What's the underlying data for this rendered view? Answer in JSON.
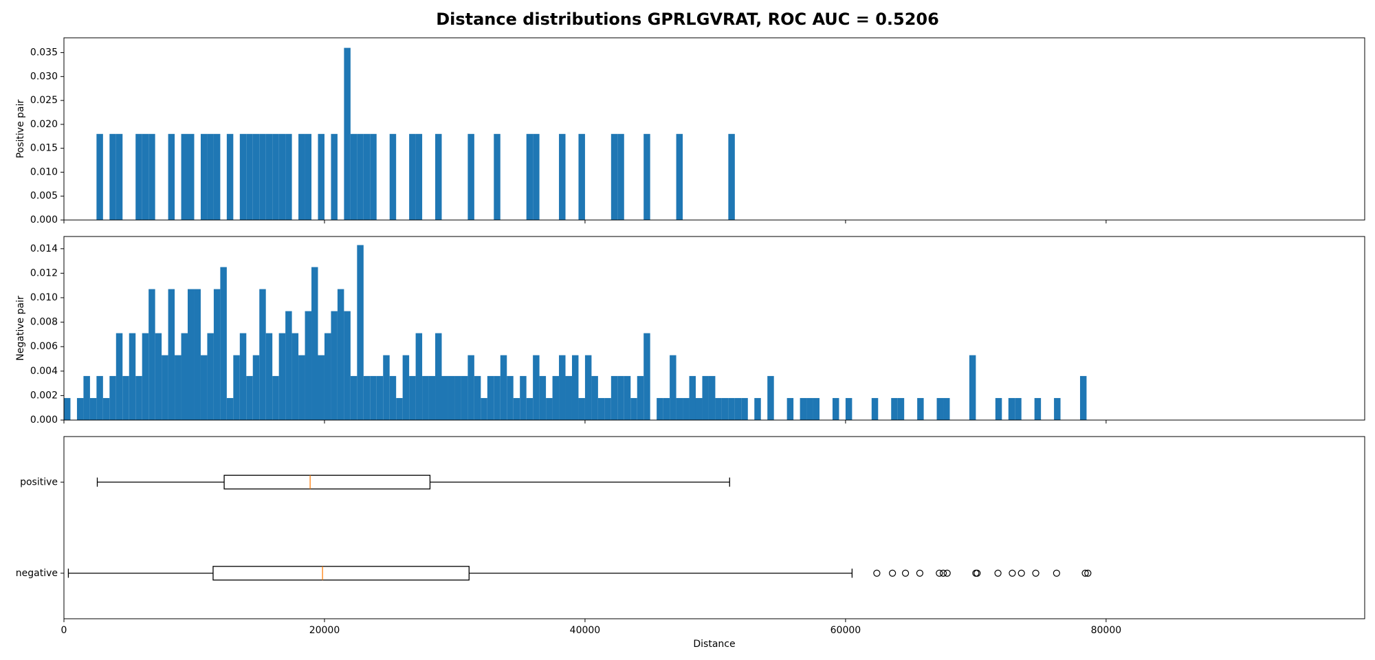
{
  "title": "Distance distributions GPRLGVRAT, ROC AUC = 0.5206",
  "chart_data": [
    {
      "type": "histogram",
      "ylabel": "Positive pair",
      "color": "#1f77b4",
      "bins": [
        0,
        500,
        1000,
        1500,
        2000,
        2500,
        3000,
        3500,
        4000,
        4500,
        5000,
        5500,
        6000,
        6500,
        7000,
        7500,
        8000,
        8500,
        9000,
        9500,
        10000,
        10500,
        11000,
        11500,
        12000,
        12500,
        13000,
        13500,
        14000,
        14500,
        15000,
        15500,
        16000,
        16500,
        17000,
        17500,
        18000,
        18500,
        19000,
        19500,
        20000,
        20500,
        21000,
        21500,
        22000,
        22500,
        23000,
        23500,
        24000,
        24500,
        25000,
        25500,
        26000,
        26500,
        27000,
        27500,
        28000,
        28500,
        29000,
        29500,
        30000,
        30500,
        31000,
        31500,
        32000,
        32500,
        33000,
        33500,
        34000,
        34500,
        35000,
        35500,
        36000,
        36500,
        37000,
        37500,
        38000,
        38500,
        39000,
        39500,
        40000,
        40500,
        41000,
        41500,
        42000,
        42500,
        43000,
        43500,
        44000,
        44500,
        45000,
        45500,
        46000,
        46500,
        47000,
        47500,
        48000,
        48500,
        49000,
        49500,
        50000,
        50500,
        51000,
        51500,
        52000
      ],
      "values": [
        0,
        0,
        0,
        0,
        0,
        0.018,
        0,
        0.018,
        0.018,
        0,
        0,
        0.018,
        0.018,
        0.018,
        0,
        0,
        0.018,
        0,
        0.018,
        0.018,
        0,
        0.018,
        0.018,
        0.018,
        0,
        0.018,
        0,
        0.018,
        0.018,
        0.018,
        0.018,
        0.018,
        0.018,
        0.018,
        0.018,
        0,
        0.018,
        0.018,
        0,
        0.018,
        0,
        0.018,
        0,
        0.036,
        0.018,
        0.018,
        0.018,
        0.018,
        0,
        0,
        0.018,
        0,
        0,
        0.018,
        0.018,
        0,
        0,
        0.018,
        0,
        0,
        0,
        0,
        0.018,
        0,
        0,
        0,
        0.018,
        0,
        0,
        0,
        0,
        0.018,
        0.018,
        0,
        0,
        0,
        0.018,
        0,
        0,
        0.018,
        0,
        0,
        0,
        0,
        0.018,
        0.018,
        0,
        0,
        0,
        0.018,
        0,
        0,
        0,
        0,
        0.018,
        0,
        0,
        0,
        0,
        0,
        0,
        0,
        0.018,
        0
      ],
      "xlim": [
        0,
        99850
      ],
      "xticks": [
        0,
        20000,
        40000,
        60000,
        80000
      ],
      "xtick_labels": false,
      "ylim": [
        0,
        0.0381
      ],
      "yticks": [
        {
          "value": 0,
          "label": "0.000"
        },
        {
          "value": 0.005,
          "label": "0.005"
        },
        {
          "value": 0.01,
          "label": "0.010"
        },
        {
          "value": 0.015,
          "label": "0.015"
        },
        {
          "value": 0.02,
          "label": "0.020"
        },
        {
          "value": 0.025,
          "label": "0.025"
        },
        {
          "value": 0.03,
          "label": "0.030"
        },
        {
          "value": 0.035,
          "label": "0.035"
        }
      ]
    },
    {
      "type": "histogram",
      "ylabel": "Negative pair",
      "color": "#1f77b4",
      "bins": [
        0,
        500,
        1000,
        1500,
        2000,
        2500,
        3000,
        3500,
        4000,
        4500,
        5000,
        5500,
        6000,
        6500,
        7000,
        7500,
        8000,
        8500,
        9000,
        9500,
        10000,
        10500,
        11000,
        11500,
        12000,
        12500,
        13000,
        13500,
        14000,
        14500,
        15000,
        15500,
        16000,
        16500,
        17000,
        17500,
        18000,
        18500,
        19000,
        19500,
        20000,
        20500,
        21000,
        21500,
        22000,
        22500,
        23000,
        23500,
        24000,
        24500,
        25000,
        25500,
        26000,
        26500,
        27000,
        27500,
        28000,
        28500,
        29000,
        29500,
        30000,
        30500,
        31000,
        31500,
        32000,
        32500,
        33000,
        33500,
        34000,
        34500,
        35000,
        35500,
        36000,
        36500,
        37000,
        37500,
        38000,
        38500,
        39000,
        39500,
        40000,
        40500,
        41000,
        41500,
        42000,
        42500,
        43000,
        43500,
        44000,
        44500,
        45000,
        45500,
        46000,
        46500,
        47000,
        47500,
        48000,
        48500,
        49000,
        49500,
        50000,
        50500,
        51000,
        51500,
        52000,
        52500,
        53000,
        53500,
        54000,
        54500,
        55000,
        55500,
        56000,
        56500,
        57000,
        57500,
        58000,
        58500,
        59000,
        59500,
        60000,
        60500,
        61000,
        61500,
        62000,
        62500,
        63000,
        63500,
        64000,
        64500,
        65000,
        65500,
        66000,
        66500,
        67000,
        67500,
        68000,
        68500,
        69000,
        69500,
        70000,
        70500,
        71000,
        71500,
        72000,
        72500,
        73000,
        73500,
        74000,
        74500,
        75000,
        75500,
        76000,
        76500,
        77000,
        77500,
        78000,
        78500,
        79000
      ],
      "values": [
        0.0018,
        0,
        0.0018,
        0.0036,
        0.0018,
        0.0036,
        0.0018,
        0.0036,
        0.0071,
        0.0036,
        0.0071,
        0.0036,
        0.0071,
        0.0107,
        0.0071,
        0.0053,
        0.0107,
        0.0053,
        0.0071,
        0.0107,
        0.0107,
        0.0053,
        0.0071,
        0.0107,
        0.0125,
        0.0018,
        0.0053,
        0.0071,
        0.0036,
        0.0053,
        0.0107,
        0.0071,
        0.0036,
        0.0071,
        0.0089,
        0.0071,
        0.0053,
        0.0089,
        0.0125,
        0.0053,
        0.0071,
        0.0089,
        0.0107,
        0.0089,
        0.0036,
        0.0143,
        0.0036,
        0.0036,
        0.0036,
        0.0053,
        0.0036,
        0.0018,
        0.0053,
        0.0036,
        0.0071,
        0.0036,
        0.0036,
        0.0071,
        0.0036,
        0.0036,
        0.0036,
        0.0036,
        0.0053,
        0.0036,
        0.0018,
        0.0036,
        0.0036,
        0.0053,
        0.0036,
        0.0018,
        0.0036,
        0.0018,
        0.0053,
        0.0036,
        0.0018,
        0.0036,
        0.0053,
        0.0036,
        0.0053,
        0.0018,
        0.0053,
        0.0036,
        0.0018,
        0.0018,
        0.0036,
        0.0036,
        0.0036,
        0.0018,
        0.0036,
        0.0071,
        0,
        0.0018,
        0.0018,
        0.0053,
        0.0018,
        0.0018,
        0.0036,
        0.0018,
        0.0036,
        0.0036,
        0.0018,
        0.0018,
        0.0018,
        0.0018,
        0.0018,
        0,
        0.0018,
        0,
        0.0036,
        0,
        0,
        0.0018,
        0,
        0.0018,
        0.0018,
        0.0018,
        0,
        0,
        0.0018,
        0,
        0.0018,
        0,
        0,
        0,
        0.0018,
        0,
        0,
        0.0018,
        0.0018,
        0,
        0,
        0.0018,
        0,
        0,
        0.0018,
        0.0018,
        0,
        0,
        0,
        0.0053,
        0,
        0,
        0,
        0.0018,
        0,
        0.0018,
        0.0018,
        0,
        0,
        0.0018,
        0,
        0,
        0.0018,
        0,
        0,
        0,
        0.0036,
        0
      ],
      "xlim": [
        0,
        99850
      ],
      "xticks": [
        0,
        20000,
        40000,
        60000,
        80000
      ],
      "xtick_labels": false,
      "ylim": [
        0,
        0.015
      ],
      "yticks": [
        {
          "value": 0,
          "label": "0.000"
        },
        {
          "value": 0.002,
          "label": "0.002"
        },
        {
          "value": 0.004,
          "label": "0.004"
        },
        {
          "value": 0.006,
          "label": "0.006"
        },
        {
          "value": 0.008,
          "label": "0.008"
        },
        {
          "value": 0.01,
          "label": "0.010"
        },
        {
          "value": 0.012,
          "label": "0.012"
        },
        {
          "value": 0.014,
          "label": "0.014"
        }
      ]
    },
    {
      "type": "boxplot",
      "xlabel": "Distance",
      "color": "#000000",
      "median_color": "#ff7f0e",
      "series": [
        {
          "name": "negative",
          "whislo": 340,
          "q1": 11450,
          "med": 19850,
          "q3": 31100,
          "whishi": 60500,
          "fliers": [
            62400,
            63600,
            64600,
            65700,
            67200,
            67500,
            67800,
            70000,
            70100,
            71700,
            72800,
            73500,
            74600,
            76200,
            78400,
            78600
          ]
        },
        {
          "name": "positive",
          "whislo": 2560,
          "q1": 12300,
          "med": 18900,
          "q3": 28100,
          "whishi": 51100,
          "fliers": []
        }
      ],
      "xlim": [
        0,
        99850
      ],
      "xticks": [
        0,
        20000,
        40000,
        60000,
        80000
      ],
      "xtick_labels": true,
      "ylim": [
        0.5,
        2.5
      ]
    }
  ]
}
